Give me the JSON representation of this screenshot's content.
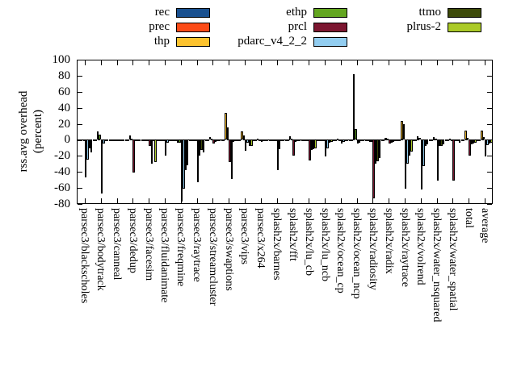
{
  "ylabel": {
    "line1": "rss.avg overhead",
    "line2": "(percent)"
  },
  "legend": {
    "columns": [
      [
        {
          "name": "rec",
          "color": "#19508f"
        },
        {
          "name": "prec",
          "color": "#fc4b17"
        },
        {
          "name": "thp",
          "color": "#fdc32f"
        }
      ],
      [
        {
          "name": "ethp",
          "color": "#63a620"
        },
        {
          "name": "prcl",
          "color": "#7c1630"
        },
        {
          "name": "pdarc_v4_2_2",
          "color": "#92cdf0"
        }
      ],
      [
        {
          "name": "ttmo",
          "color": "#3d4a0a"
        },
        {
          "name": "plrus-2",
          "color": "#abca28"
        }
      ]
    ]
  },
  "chart_data": {
    "type": "bar",
    "title": "",
    "xlabel": "",
    "ylabel": "rss.avg overhead (percent)",
    "ylim": [
      -80,
      100
    ],
    "yticks": [
      100,
      80,
      60,
      40,
      20,
      0,
      -20,
      -40,
      -60,
      -80
    ],
    "grid": false,
    "legend_position": "top",
    "categories": [
      "parsec3/blackscholes",
      "parsec3/bodytrack",
      "parsec3/canneal",
      "parsec3/dedup",
      "parsec3/facesim",
      "parsec3/fluidanimate",
      "parsec3/freqmine",
      "parsec3/raytrace",
      "parsec3/streamcluster",
      "parsec3/swaptions",
      "parsec3/vips",
      "parsec3/x264",
      "splash2x/barnes",
      "splash2x/fft",
      "splash2x/lu_cb",
      "splash2x/lu_ncb",
      "splash2x/ocean_cp",
      "splash2x/ocean_ncp",
      "splash2x/radiosity",
      "splash2x/radix",
      "splash2x/raytrace",
      "splash2x/volrend",
      "splash2x/water_nsquared",
      "splash2x/water_spatial",
      "total",
      "average"
    ],
    "series": [
      {
        "name": "rec",
        "color": "#19508f",
        "values": [
          -2,
          -1,
          -1,
          -1,
          -1,
          -1,
          -2,
          -1,
          -1,
          -1,
          -1,
          -1,
          -1,
          -1,
          -1,
          -1,
          -1,
          -1,
          -2,
          -1,
          -1,
          -1,
          -1,
          -1,
          -1,
          -1
        ]
      },
      {
        "name": "prec",
        "color": "#fc4b17",
        "values": [
          -2,
          -1,
          -1,
          -1,
          -1,
          -1,
          -2,
          -1,
          -1,
          -1,
          -1,
          -1,
          -1,
          -1,
          -1,
          -1,
          -1,
          -2,
          -2,
          -1,
          -1,
          -1,
          -1,
          -1,
          -1,
          -1
        ]
      },
      {
        "name": "thp",
        "color": "#fdc32f",
        "values": [
          -2,
          11,
          -1,
          5,
          -2,
          -2,
          -4,
          -2,
          3,
          34,
          11,
          1,
          -1,
          4,
          -2,
          -1,
          1,
          82,
          -3,
          2,
          24,
          4,
          3,
          1,
          12,
          12
        ]
      },
      {
        "name": "ethp",
        "color": "#63a620",
        "values": [
          -2,
          6,
          -1,
          1,
          -2,
          -1,
          -4,
          -2,
          1,
          16,
          5,
          0,
          -1,
          1,
          -2,
          -1,
          0,
          14,
          -3,
          1,
          20,
          2,
          1,
          0,
          2,
          3
        ]
      },
      {
        "name": "prcl",
        "color": "#7c1630",
        "values": [
          -47,
          -67,
          -2,
          -41,
          -8,
          -20,
          -77,
          -53,
          -5,
          -28,
          -14,
          -3,
          -38,
          -20,
          -26,
          -21,
          -5,
          -5,
          -73,
          -5,
          -61,
          -62,
          -51,
          -51,
          -20,
          -21
        ]
      },
      {
        "name": "pdarc_v4_2_2",
        "color": "#92cdf0",
        "values": [
          -25,
          -5,
          -1,
          -2,
          -30,
          -4,
          -61,
          -20,
          -3,
          -49,
          -4,
          -2,
          -12,
          -3,
          -13,
          -11,
          -3,
          -4,
          -30,
          -4,
          -30,
          -33,
          -8,
          -2,
          -6,
          -7
        ]
      },
      {
        "name": "ttmo",
        "color": "#3d4a0a",
        "values": [
          -11,
          -2,
          -1,
          -1,
          -2,
          -1,
          -38,
          -13,
          -1,
          -3,
          -8,
          -1,
          -2,
          -2,
          -12,
          -4,
          -2,
          -2,
          -27,
          -3,
          -20,
          -8,
          -8,
          -2,
          -5,
          -5
        ]
      },
      {
        "name": "plrus-2",
        "color": "#abca28",
        "values": [
          -16,
          -2,
          -1,
          -1,
          -28,
          -1,
          -32,
          -16,
          -1,
          -2,
          -8,
          -1,
          -2,
          -2,
          -11,
          -3,
          -2,
          -2,
          -23,
          -2,
          -15,
          -6,
          -6,
          -4,
          -4,
          -4
        ]
      }
    ]
  }
}
